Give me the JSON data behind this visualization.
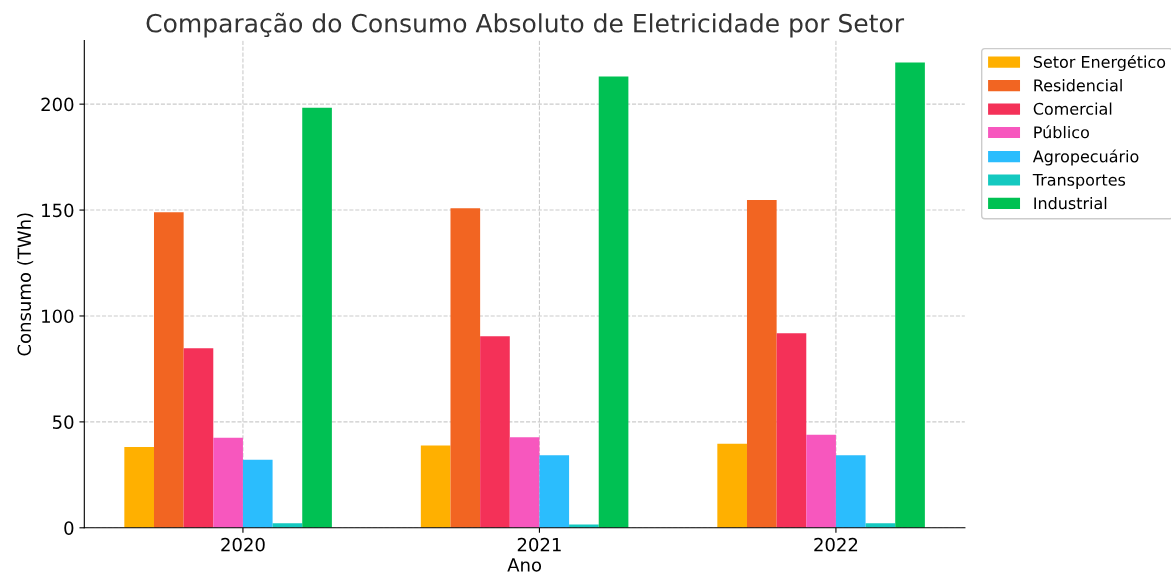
{
  "chart_data": {
    "type": "bar",
    "title": "Comparação do Consumo Absoluto de Eletricidade por Setor",
    "xlabel": "Ano",
    "ylabel": "Consumo (TWh)",
    "categories": [
      "2020",
      "2021",
      "2022"
    ],
    "series": [
      {
        "name": "Setor Energético",
        "color": "#ffb000",
        "values": [
          38.1,
          38.9,
          39.7
        ]
      },
      {
        "name": "Residencial",
        "color": "#f26522",
        "values": [
          149,
          150.9,
          154.7
        ]
      },
      {
        "name": "Comercial",
        "color": "#f43158",
        "values": [
          84.8,
          90.4,
          91.9
        ]
      },
      {
        "name": "Público",
        "color": "#f757be",
        "values": [
          42.5,
          42.8,
          43.9
        ]
      },
      {
        "name": "Agropecuário",
        "color": "#2bbdfd",
        "values": [
          32.1,
          34.3,
          34.3
        ]
      },
      {
        "name": "Transportes",
        "color": "#14c9c0",
        "values": [
          2.1,
          1.6,
          2.2
        ]
      },
      {
        "name": "Industrial",
        "color": "#00c153",
        "values": [
          198.3,
          213.1,
          219.7
        ]
      }
    ],
    "ylim": [
      0,
      230
    ],
    "yticks": [
      0,
      50,
      100,
      150,
      200
    ],
    "grid": true,
    "legend": "top right"
  }
}
